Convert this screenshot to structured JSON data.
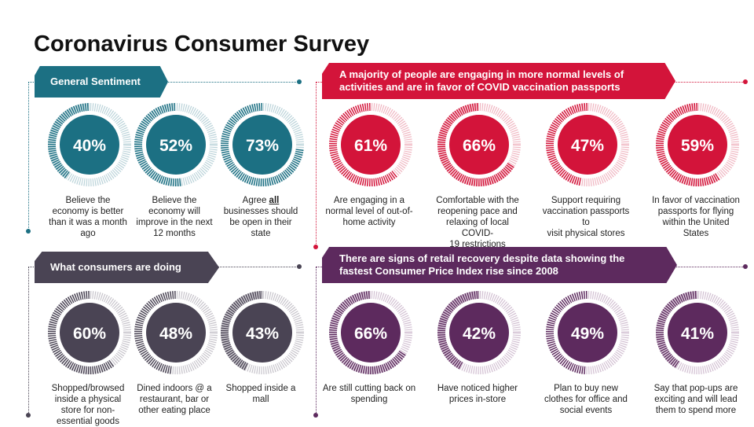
{
  "title": "Coronavirus Consumer Survey",
  "colors": {
    "teal": "#1c7083",
    "red": "#d3143a",
    "gray": "#4a4454",
    "purple": "#5d2a5e"
  },
  "sections": {
    "general": {
      "banner": "General Sentiment",
      "stats": [
        {
          "value": "40%",
          "fraction": 0.4,
          "caption": [
            "Believe the",
            "economy is better",
            "than it was a month",
            "ago"
          ]
        },
        {
          "value": "52%",
          "fraction": 0.52,
          "caption": [
            "Believe the",
            "economy will",
            "improve in the next",
            "12 months"
          ]
        },
        {
          "value": "73%",
          "fraction": 0.73,
          "caption": [
            "Agree all",
            "businesses should",
            "be open in their",
            "state"
          ]
        }
      ]
    },
    "normal": {
      "banner": "A majority of people are engaging in more normal levels of activities and are in favor of COVID vaccination passports",
      "stats": [
        {
          "value": "61%",
          "fraction": 0.61,
          "caption": [
            "Are engaging in a",
            "normal level of out-of-",
            "home activity"
          ]
        },
        {
          "value": "66%",
          "fraction": 0.66,
          "caption": [
            "Comfortable with the",
            "reopening pace and",
            "relaxing of local COVID-",
            "19 restrictions"
          ]
        },
        {
          "value": "47%",
          "fraction": 0.47,
          "caption": [
            "Support requiring",
            "vaccination passports to",
            "visit physical stores"
          ]
        },
        {
          "value": "59%",
          "fraction": 0.59,
          "caption": [
            "In favor of vaccination",
            "passports for flying",
            "within the United States"
          ]
        }
      ]
    },
    "doing": {
      "banner": "What consumers  are doing",
      "stats": [
        {
          "value": "60%",
          "fraction": 0.6,
          "caption": [
            "Shopped/browsed",
            "inside a physical",
            "store for non-",
            "essential goods"
          ]
        },
        {
          "value": "48%",
          "fraction": 0.48,
          "caption": [
            "Dined indoors @ a",
            "restaurant, bar or",
            "other eating place"
          ]
        },
        {
          "value": "43%",
          "fraction": 0.43,
          "caption": [
            "Shopped inside a",
            "mall"
          ]
        }
      ]
    },
    "retail": {
      "banner": "There are signs  of retail recovery despite data showing the fastest  Consumer  Price Index rise since 2008",
      "stats": [
        {
          "value": "66%",
          "fraction": 0.66,
          "caption": [
            "Are still cutting back on",
            "spending"
          ]
        },
        {
          "value": "42%",
          "fraction": 0.42,
          "caption": [
            "Have noticed higher",
            "prices in-store"
          ]
        },
        {
          "value": "49%",
          "fraction": 0.49,
          "caption": [
            "Plan to buy new",
            "clothes for office and",
            "social events"
          ]
        },
        {
          "value": "41%",
          "fraction": 0.41,
          "caption": [
            "Say that pop-ups are",
            "exciting and will lead",
            "them to spend more"
          ]
        }
      ]
    }
  }
}
